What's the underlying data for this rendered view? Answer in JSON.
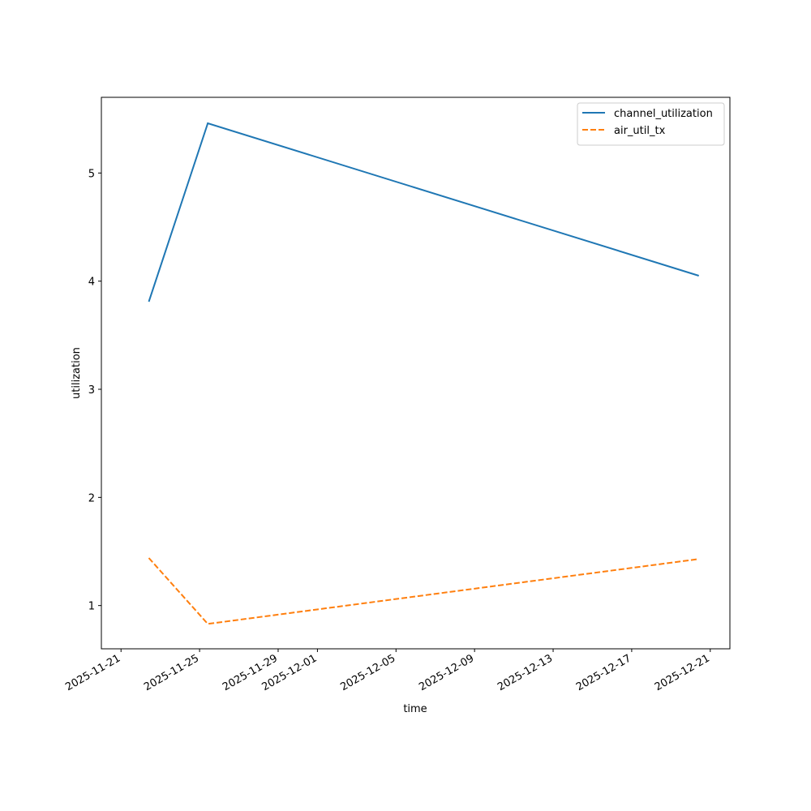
{
  "chart_data": {
    "type": "line",
    "xlabel": "time",
    "ylabel": "utilization",
    "x_scale": "date",
    "xlim": [
      "2025-11-20",
      "2025-12-22"
    ],
    "ylim": [
      0.6,
      5.7
    ],
    "x_ticks": [
      "2025-11-21",
      "2025-11-25",
      "2025-11-29",
      "2025-12-01",
      "2025-12-05",
      "2025-12-09",
      "2025-12-13",
      "2025-12-17",
      "2025-12-21"
    ],
    "y_ticks": [
      1,
      2,
      3,
      4,
      5
    ],
    "grid": false,
    "legend_position": "top-right",
    "series": [
      {
        "name": "channel_utilization",
        "color": "#1f77b4",
        "style": "solid",
        "x": [
          "2025-11-22T10:00",
          "2025-11-25T10:00",
          "2025-12-20T10:00"
        ],
        "y": [
          3.81,
          5.46,
          4.05
        ]
      },
      {
        "name": "air_util_tx",
        "color": "#ff7f0e",
        "style": "dashed",
        "x": [
          "2025-11-22T10:00",
          "2025-11-25T10:00",
          "2025-12-20T10:00"
        ],
        "y": [
          1.44,
          0.83,
          1.43
        ]
      }
    ]
  }
}
